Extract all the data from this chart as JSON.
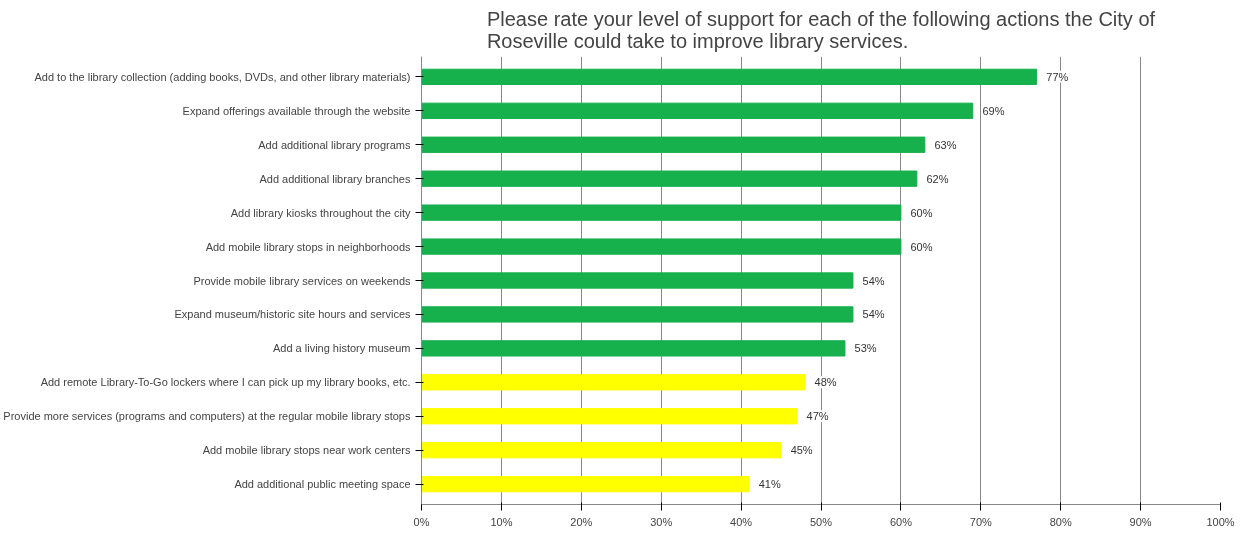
{
  "chart_data": {
    "type": "bar",
    "orientation": "horizontal",
    "title": "Please rate your level of support for each of the following actions the City of Roseville could take to improve library services.",
    "categories": [
      "Add to the library collection (adding books, DVDs, and other library materials)",
      "Expand offerings available through the website",
      "Add additional library programs",
      "Add additional library branches",
      "Add library kiosks throughout the city",
      "Add mobile library stops in neighborhoods",
      "Provide mobile library services on weekends",
      "Expand museum/historic site hours and services",
      "Add a living history museum",
      "Add remote Library-To-Go lockers where I can pick up my library books, etc.",
      "Provide more services (programs and computers) at the regular mobile library stops",
      "Add mobile library stops near work centers",
      "Add additional public meeting space"
    ],
    "values": [
      77,
      69,
      63,
      62,
      60,
      60,
      54,
      54,
      53,
      48,
      47,
      45,
      41
    ],
    "value_labels": [
      "77%",
      "69%",
      "63%",
      "62%",
      "60%",
      "60%",
      "54%",
      "54%",
      "53%",
      "48%",
      "47%",
      "45%",
      "41%"
    ],
    "colors": [
      "#16b04c",
      "#16b04c",
      "#16b04c",
      "#16b04c",
      "#16b04c",
      "#16b04c",
      "#16b04c",
      "#16b04c",
      "#16b04c",
      "#ffff00",
      "#ffff00",
      "#ffff00",
      "#ffff00"
    ],
    "xlim": [
      0,
      100
    ],
    "xticks": [
      {
        "value": 0,
        "label": "0%"
      },
      {
        "value": 10,
        "label": "10%"
      },
      {
        "value": 20,
        "label": "20%"
      },
      {
        "value": 30,
        "label": "30%"
      },
      {
        "value": 40,
        "label": "40%"
      },
      {
        "value": 50,
        "label": "50%"
      },
      {
        "value": 60,
        "label": "60%"
      },
      {
        "value": 70,
        "label": "70%"
      },
      {
        "value": 80,
        "label": "80%"
      },
      {
        "value": 90,
        "label": "90%"
      },
      {
        "value": 100,
        "label": "100%"
      }
    ],
    "grid": "x"
  }
}
